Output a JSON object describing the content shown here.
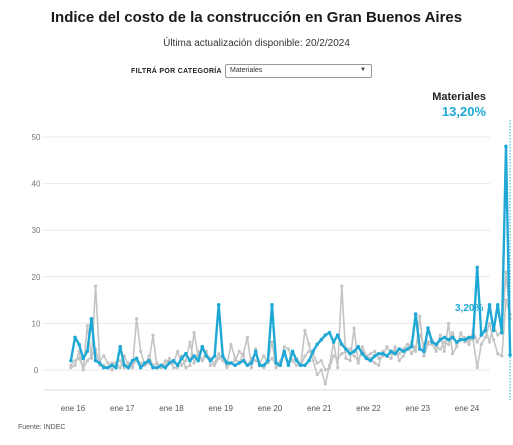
{
  "title": "Indice del costo de la construcción en Gran Buenos Aires",
  "subtitle": "Última actualización disponible: 20/2/2024",
  "filter": {
    "label": "FILTRÁ POR CATEGORÍA",
    "selected": "Materiales"
  },
  "source": "Fuente: INDEC",
  "colors": {
    "highlight": "#1fa8d6",
    "background_series": "#c4c4c4",
    "grid": "#e8e8e8"
  },
  "chart_data": {
    "type": "line",
    "ylim": [
      -3,
      52
    ],
    "y_ticks": [
      0,
      10,
      20,
      30,
      40,
      50
    ],
    "x_ticks": [
      {
        "label": "ene 16",
        "x": 2016.0
      },
      {
        "label": "ene 17",
        "x": 2017.0
      },
      {
        "label": "ene 18",
        "x": 2018.0
      },
      {
        "label": "ene 19",
        "x": 2019.0
      },
      {
        "label": "ene 20",
        "x": 2020.0
      },
      {
        "label": "ene 21",
        "x": 2021.0
      },
      {
        "label": "ene 22",
        "x": 2022.0
      },
      {
        "label": "ene 23",
        "x": 2023.0
      },
      {
        "label": "ene 24",
        "x": 2024.0
      }
    ],
    "grid": "horizontal",
    "highlight_series": {
      "name": "Materiales",
      "highlight_value_label": "13,20%",
      "last_value_label": "3,20%",
      "x_start": 2015.958,
      "x_step": 0.08333,
      "values": [
        2.0,
        7.0,
        5.5,
        2.5,
        4.0,
        11.0,
        2.0,
        1.5,
        0.5,
        0.5,
        1.0,
        0.5,
        5.0,
        1.0,
        0.5,
        2.0,
        2.5,
        0.5,
        1.5,
        2.0,
        0.5,
        0.5,
        1.0,
        0.5,
        1.5,
        2.0,
        1.0,
        2.5,
        3.5,
        2.0,
        3.0,
        2.0,
        5.0,
        3.0,
        2.0,
        3.0,
        14.0,
        3.0,
        1.5,
        1.5,
        1.0,
        1.5,
        2.0,
        1.0,
        1.5,
        4.0,
        1.0,
        1.0,
        2.0,
        14.0,
        1.5,
        1.0,
        4.0,
        1.0,
        4.0,
        2.0,
        1.0,
        1.0,
        2.0,
        4.0,
        5.5,
        6.5,
        7.5,
        8.0,
        6.0,
        7.5,
        5.5,
        4.5,
        3.5,
        4.0,
        5.0,
        3.5,
        2.5,
        2.0,
        3.0,
        3.5,
        3.5,
        3.0,
        4.0,
        3.5,
        4.5,
        4.0,
        4.5,
        5.0,
        12.0,
        4.5,
        4.0,
        9.0,
        6.0,
        5.5,
        6.5,
        7.0,
        6.5,
        7.0,
        6.0,
        6.5,
        6.5,
        7.0,
        7.0,
        22.0,
        7.5,
        8.5,
        14.0,
        8.5,
        14.0,
        8.0,
        48.0,
        3.2
      ]
    },
    "background_series": [
      {
        "values": [
          0.5,
          1.0,
          4.0,
          0.0,
          9.5,
          2.5,
          18.0,
          2.0,
          3.0,
          1.5,
          0.0,
          1.5,
          0.5,
          3.0,
          1.0,
          0.5,
          11.0,
          4.0,
          1.0,
          1.5,
          7.5,
          0.5,
          0.5,
          1.0,
          2.5,
          0.5,
          0.5,
          3.0,
          0.5,
          1.0,
          8.0,
          3.0,
          2.0,
          4.0,
          1.0,
          1.5,
          3.5,
          2.0,
          1.0,
          5.5,
          2.5,
          1.5,
          3.5,
          7.0,
          0.5,
          4.5,
          1.0,
          0.5,
          2.0,
          6.0,
          0.5,
          1.5,
          5.0,
          4.5,
          2.0,
          1.0,
          1.0,
          8.5,
          5.5,
          2.0,
          -1.0,
          0.0,
          -3.0,
          1.0,
          6.0,
          0.5,
          18.0,
          2.5,
          2.0,
          9.0,
          1.5,
          5.0,
          3.0,
          2.5,
          1.5,
          1.0,
          4.0,
          3.0,
          2.5,
          5.0,
          2.0,
          3.0,
          4.5,
          6.0,
          4.0,
          11.5,
          3.0,
          5.5,
          5.5,
          4.0,
          7.5,
          4.0,
          10.0,
          3.5,
          5.0,
          8.0,
          6.0,
          6.5,
          6.5,
          0.5,
          5.5,
          7.0,
          10.0,
          6.5,
          3.5,
          3.0,
          15.0,
          12.0
        ]
      },
      {
        "values": [
          1.0,
          2.0,
          2.5,
          0.5,
          2.0,
          3.0,
          4.5,
          1.0,
          1.0,
          0.5,
          1.5,
          1.5,
          2.0,
          0.5,
          1.5,
          1.0,
          2.0,
          1.5,
          1.0,
          3.0,
          1.0,
          1.5,
          0.5,
          2.0,
          2.0,
          1.5,
          4.0,
          1.0,
          2.0,
          6.0,
          1.5,
          4.0,
          2.0,
          3.5,
          2.5,
          1.0,
          2.5,
          3.0,
          0.5,
          1.5,
          2.0,
          4.0,
          3.0,
          1.0,
          2.5,
          2.0,
          1.5,
          3.0,
          1.5,
          2.5,
          1.0,
          2.0,
          3.5,
          1.5,
          2.0,
          2.5,
          1.0,
          3.0,
          4.0,
          3.5,
          1.5,
          2.0,
          0.0,
          0.5,
          3.0,
          2.5,
          3.5,
          4.0,
          4.5,
          3.0,
          2.0,
          4.0,
          3.0,
          3.5,
          4.0,
          2.5,
          3.0,
          5.0,
          3.5,
          4.0,
          3.5,
          4.5,
          5.5,
          3.5,
          5.0,
          7.5,
          5.5,
          6.0,
          6.5,
          5.0,
          4.5,
          6.0,
          5.5,
          8.0,
          5.5,
          6.5,
          7.0,
          5.5,
          8.5,
          6.0,
          7.5,
          9.0,
          6.0,
          9.5,
          7.5,
          8.5,
          21.0,
          11.0
        ]
      }
    ]
  }
}
